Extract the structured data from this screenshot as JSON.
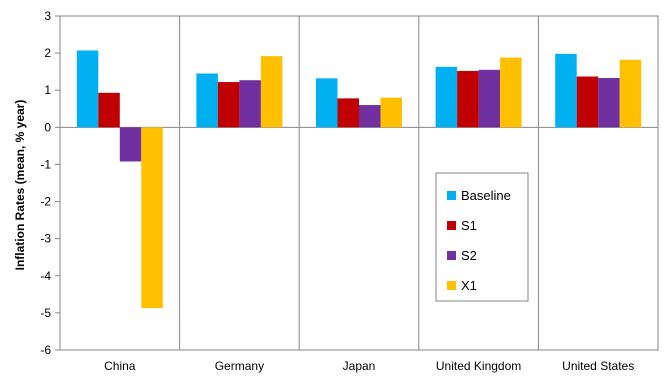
{
  "chart_data": {
    "type": "bar",
    "title": "",
    "xlabel": "",
    "ylabel": "Inflation Rates (mean, % year)",
    "ylim": [
      -6,
      3
    ],
    "yticks": [
      3,
      2,
      1,
      0,
      -1,
      -2,
      -3,
      -4,
      -5,
      -6
    ],
    "grid": "vertical separators between categories",
    "legend_placement": "lower-right inside plot",
    "categories": [
      "China",
      "Germany",
      "Japan",
      "United Kingdom",
      "United States"
    ],
    "series": [
      {
        "name": "Baseline",
        "color": "#00b0f0",
        "values": [
          2.07,
          1.45,
          1.32,
          1.63,
          1.98
        ]
      },
      {
        "name": "S1",
        "color": "#c00000",
        "values": [
          0.93,
          1.22,
          0.78,
          1.52,
          1.37
        ]
      },
      {
        "name": "S2",
        "color": "#7030a0",
        "values": [
          -0.92,
          1.27,
          0.6,
          1.55,
          1.33
        ]
      },
      {
        "name": "X1",
        "color": "#ffc000",
        "values": [
          -4.87,
          1.92,
          0.8,
          1.88,
          1.82
        ]
      }
    ]
  }
}
